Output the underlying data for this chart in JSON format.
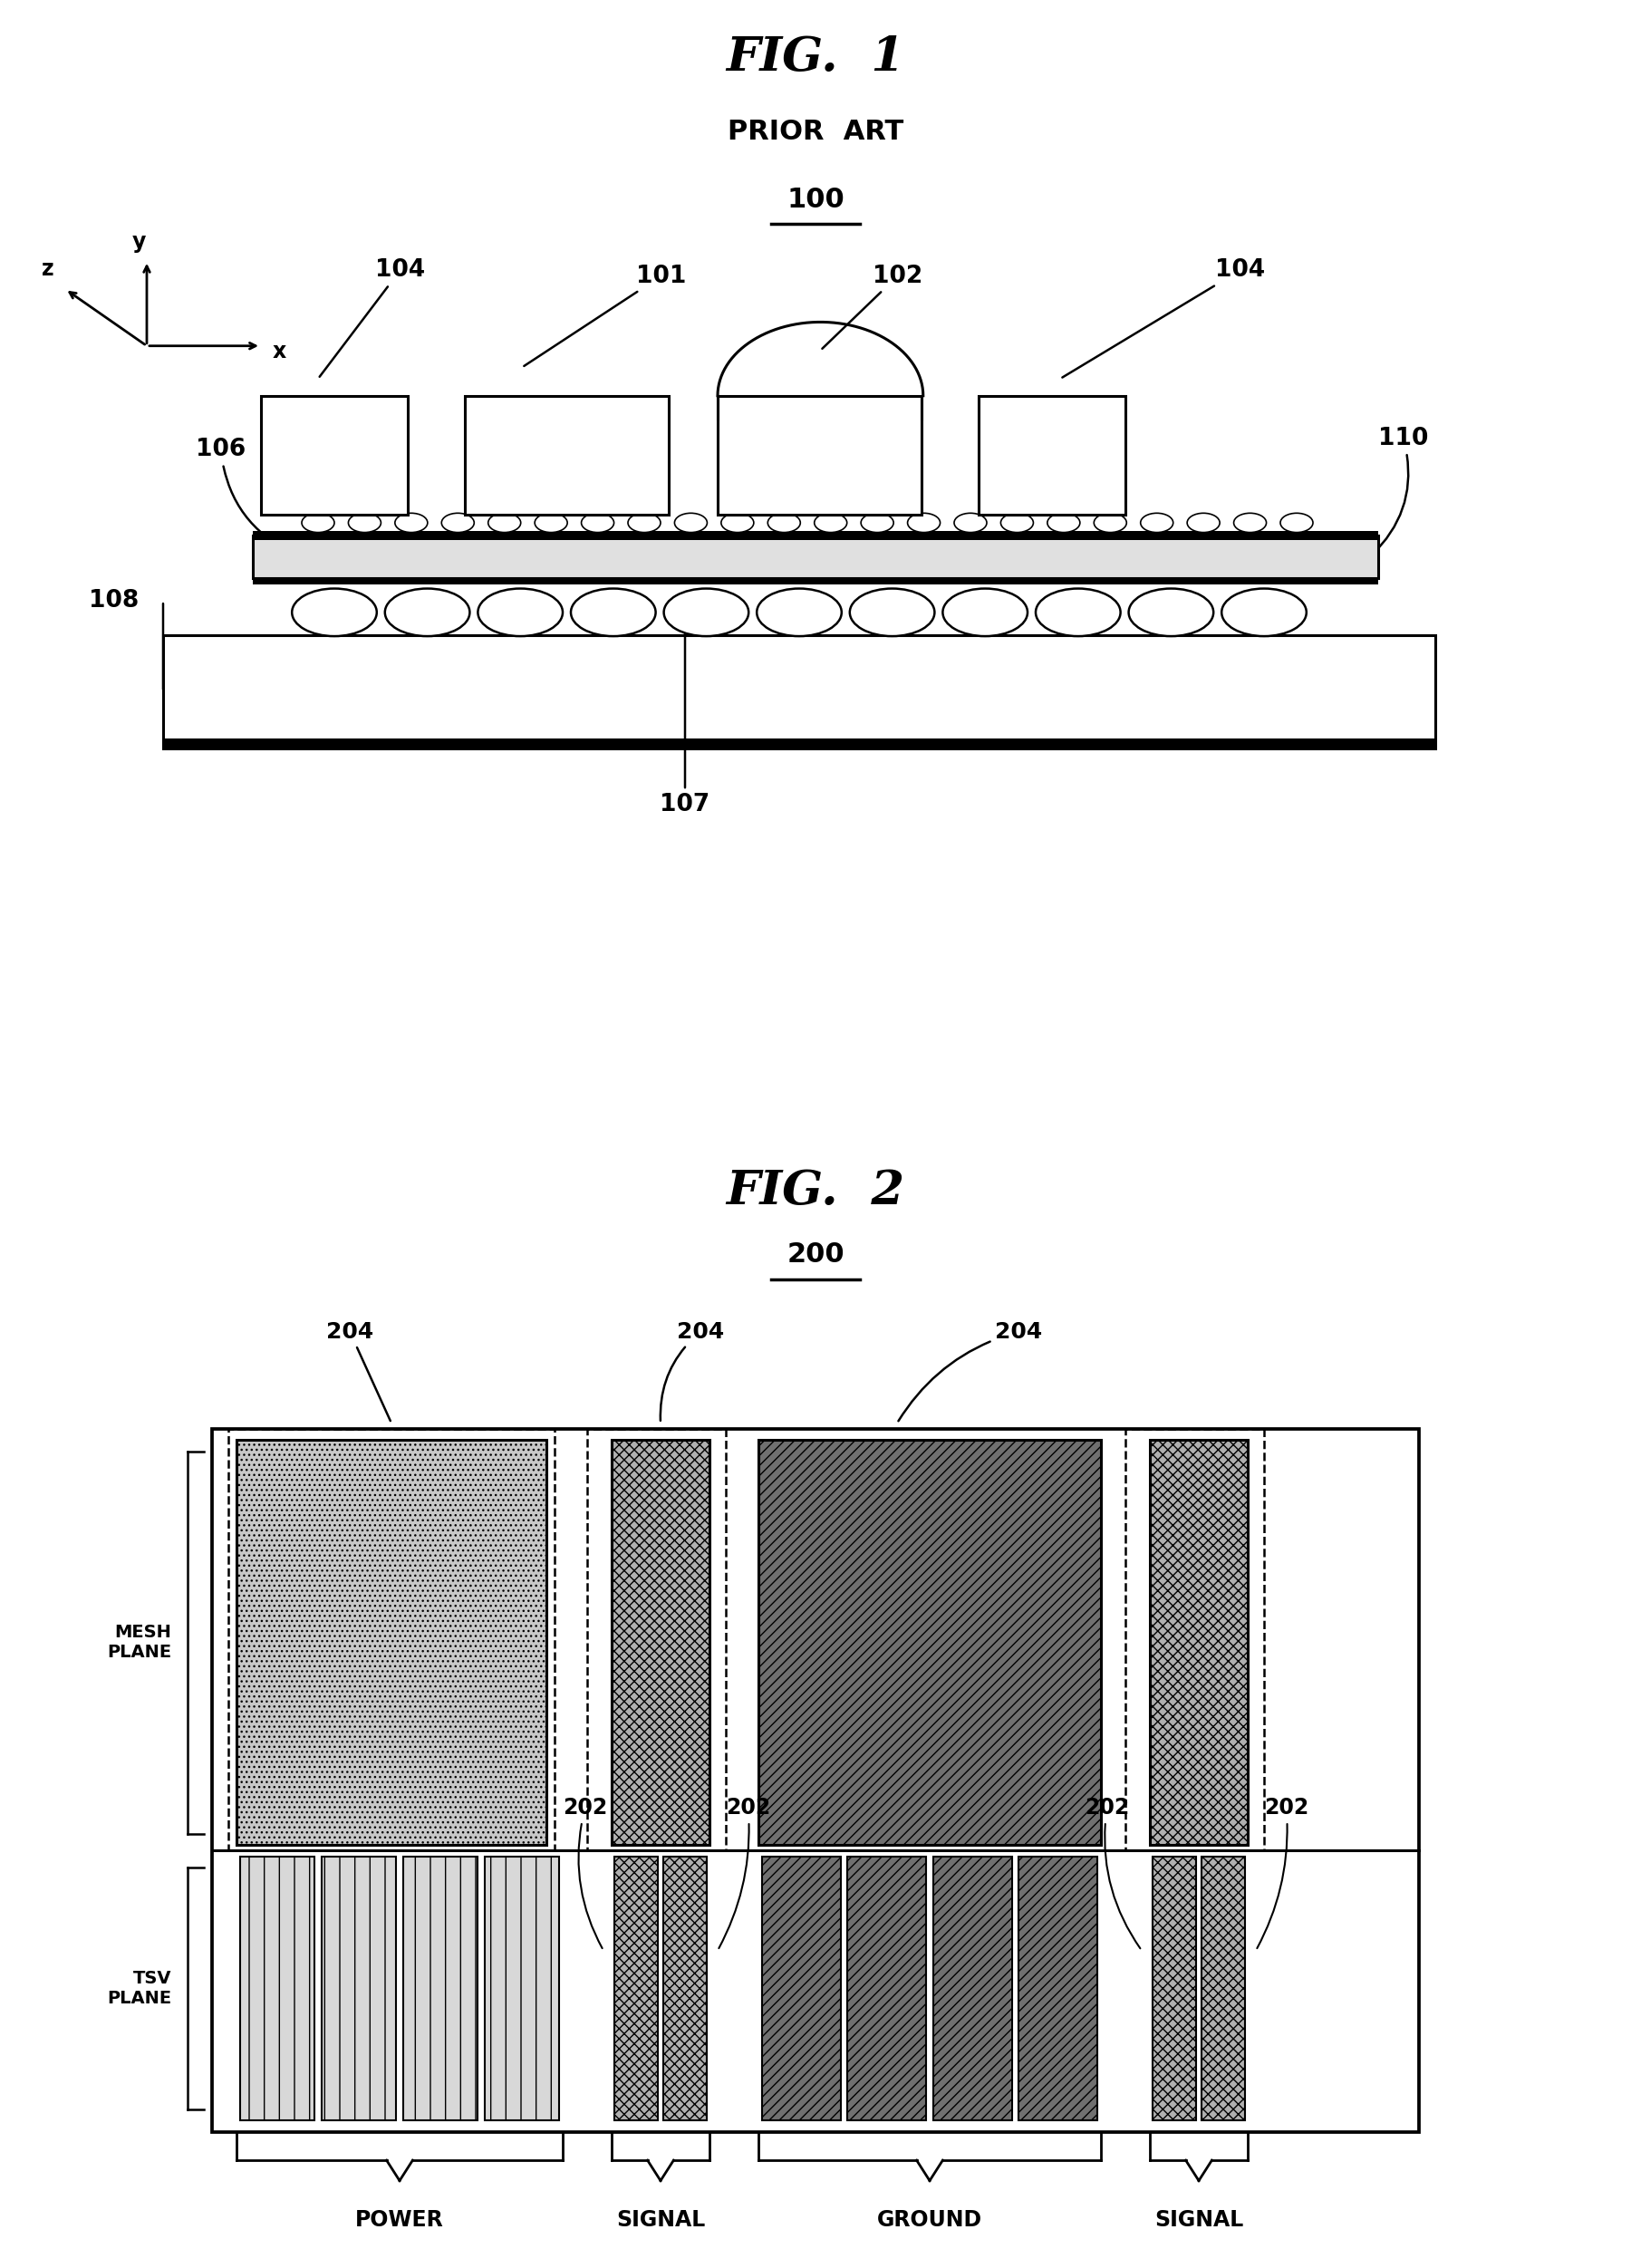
{
  "fig_title1": "FIG.  1",
  "fig_subtitle1": "PRIOR  ART",
  "fig_label1": "100",
  "fig_title2": "FIG.  2",
  "fig_label2": "200",
  "bg_color": "#ffffff",
  "line_color": "#000000"
}
